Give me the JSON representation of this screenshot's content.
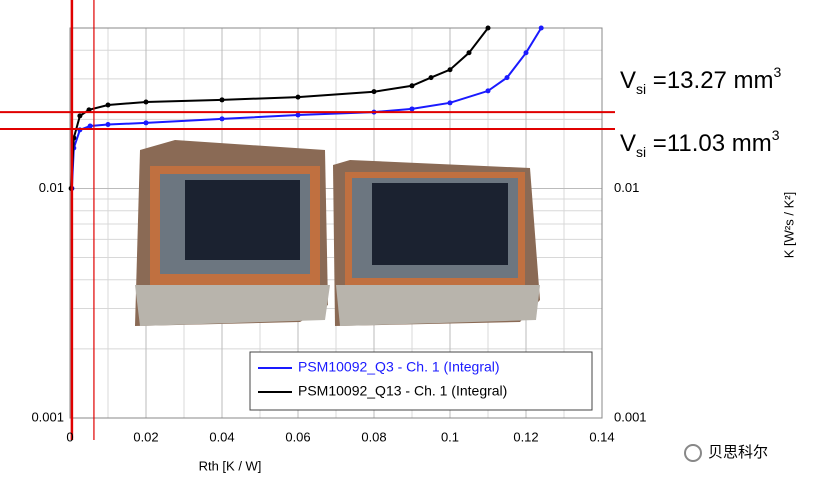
{
  "chart_data": {
    "type": "line",
    "x_label": "Rth  [K / W]",
    "y2_label": "K  [W²s / K²]",
    "log_y": true,
    "grid": true,
    "legend": "lower right",
    "xlim": [
      0,
      0.14
    ],
    "xticks": [
      0,
      0.02,
      0.04,
      0.06,
      0.08,
      0.1,
      0.12,
      0.14
    ],
    "ylim": [
      0.001,
      0.05
    ],
    "yticks": [
      0.001,
      0.01
    ],
    "y2lim": [
      0.001,
      0.05
    ],
    "y2ticks": [
      0.001,
      0.01
    ],
    "series": [
      {
        "name": "PSM10092_Q3 - Ch. 1 (Integral)",
        "color": "#1a1aff",
        "x": [
          0.0005,
          0.001,
          0.0026,
          0.0053,
          0.01,
          0.02,
          0.04,
          0.06,
          0.08,
          0.09,
          0.1,
          0.11,
          0.115,
          0.12,
          0.124
        ],
        "values": [
          0.01,
          0.015,
          0.018,
          0.0187,
          0.019,
          0.0193,
          0.0201,
          0.0209,
          0.0215,
          0.0222,
          0.0236,
          0.0266,
          0.0304,
          0.039,
          0.05
        ]
      },
      {
        "name": "PSM10092_Q13 - Ch. 1 (Integral)",
        "color": "#000000",
        "x": [
          0.0003,
          0.001,
          0.0026,
          0.005,
          0.01,
          0.02,
          0.04,
          0.06,
          0.08,
          0.09,
          0.095,
          0.1,
          0.105,
          0.11
        ],
        "values": [
          0.01,
          0.0166,
          0.0207,
          0.022,
          0.0231,
          0.0238,
          0.0243,
          0.025,
          0.0264,
          0.028,
          0.0304,
          0.0329,
          0.039,
          0.05
        ]
      }
    ],
    "reference_color": "#e00000",
    "hlines": [
      0.0215,
      0.01815
    ],
    "vlines": [
      0.0005,
      0.0063
    ],
    "annotations": [
      {
        "main": "V",
        "sub": "si",
        "text": " =13.27 mm",
        "sup": "3"
      },
      {
        "main": "V",
        "sub": "si",
        "text": " =11.03 mm",
        "sup": "3"
      }
    ]
  },
  "watermark": "贝思科尔"
}
